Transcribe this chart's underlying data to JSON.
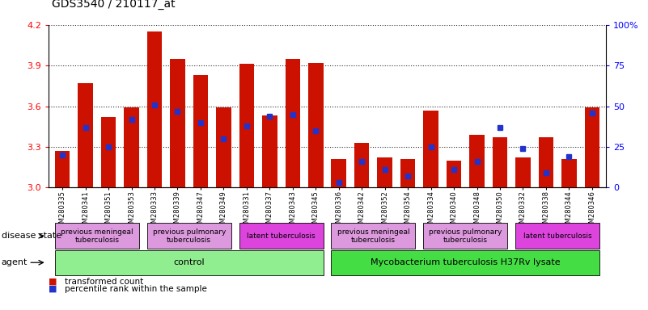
{
  "title": "GDS3540 / 210117_at",
  "samples": [
    "GSM280335",
    "GSM280341",
    "GSM280351",
    "GSM280353",
    "GSM280333",
    "GSM280339",
    "GSM280347",
    "GSM280349",
    "GSM280331",
    "GSM280337",
    "GSM280343",
    "GSM280345",
    "GSM280336",
    "GSM280342",
    "GSM280352",
    "GSM280354",
    "GSM280334",
    "GSM280340",
    "GSM280348",
    "GSM280350",
    "GSM280332",
    "GSM280338",
    "GSM280344",
    "GSM280346"
  ],
  "transformed_count": [
    3.27,
    3.77,
    3.52,
    3.59,
    4.15,
    3.95,
    3.83,
    3.59,
    3.91,
    3.53,
    3.95,
    3.92,
    3.21,
    3.33,
    3.22,
    3.21,
    3.57,
    3.2,
    3.39,
    3.37,
    3.22,
    3.37,
    3.21,
    3.59
  ],
  "percentile": [
    20,
    37,
    25,
    42,
    51,
    47,
    40,
    30,
    38,
    44,
    45,
    35,
    3,
    16,
    11,
    7,
    25,
    11,
    16,
    37,
    24,
    9,
    19,
    46
  ],
  "ylim_left": [
    3.0,
    4.2
  ],
  "ylim_right": [
    0,
    100
  ],
  "yticks_left": [
    3.0,
    3.3,
    3.6,
    3.9,
    4.2
  ],
  "yticks_right": [
    0,
    25,
    50,
    75,
    100
  ],
  "bar_color": "#cc1100",
  "marker_color": "#2233cc",
  "agent_groups": [
    {
      "label": "control",
      "start": 0,
      "end": 11,
      "color": "#90ee90"
    },
    {
      "label": "Mycobacterium tuberculosis H37Rv lysate",
      "start": 12,
      "end": 23,
      "color": "#44dd44"
    }
  ],
  "disease_groups": [
    {
      "label": "previous meningeal\ntuberculosis",
      "start": 0,
      "end": 3,
      "color": "#dd99dd"
    },
    {
      "label": "previous pulmonary\ntuberculosis",
      "start": 4,
      "end": 7,
      "color": "#dd99dd"
    },
    {
      "label": "latent tuberculosis",
      "start": 8,
      "end": 11,
      "color": "#dd44dd"
    },
    {
      "label": "previous meningeal\ntuberculosis",
      "start": 12,
      "end": 15,
      "color": "#dd99dd"
    },
    {
      "label": "previous pulmonary\ntuberculosis",
      "start": 16,
      "end": 19,
      "color": "#dd99dd"
    },
    {
      "label": "latent tuberculosis",
      "start": 20,
      "end": 23,
      "color": "#dd44dd"
    }
  ],
  "legend": [
    {
      "label": "transformed count",
      "color": "#cc1100"
    },
    {
      "label": "percentile rank within the sample",
      "color": "#2233cc"
    }
  ]
}
